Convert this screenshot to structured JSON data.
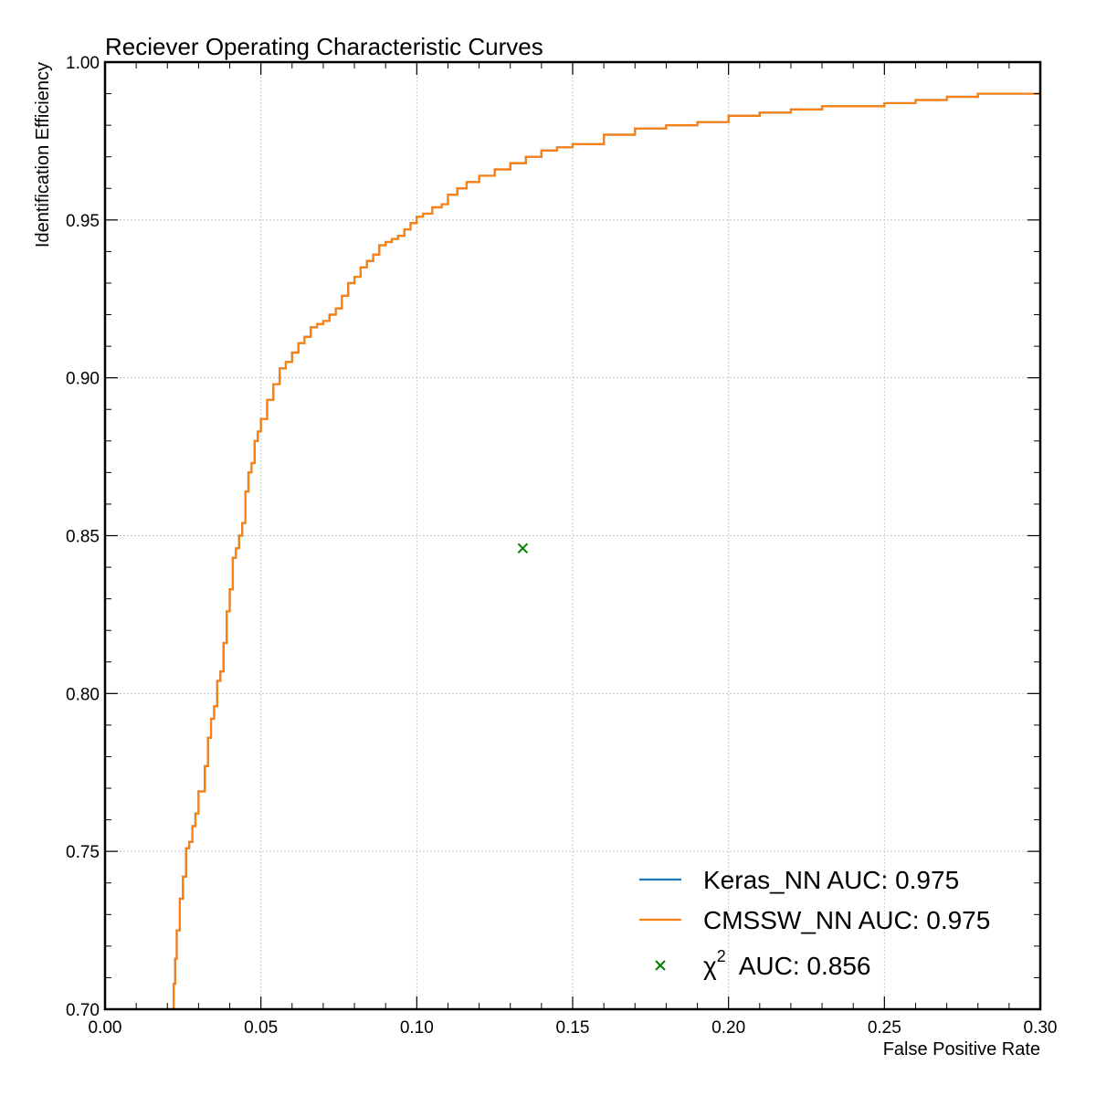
{
  "chart_data": {
    "type": "line",
    "title": "Reciever Operating Characteristic Curves",
    "xlabel": "False Positive Rate",
    "ylabel": "Identification Efficiency",
    "xlim": [
      0.0,
      0.3
    ],
    "ylim": [
      0.7,
      1.0
    ],
    "xticks": [
      "0.00",
      "0.05",
      "0.10",
      "0.15",
      "0.20",
      "0.25",
      "0.30"
    ],
    "yticks": [
      "0.70",
      "0.75",
      "0.80",
      "0.85",
      "0.90",
      "0.95",
      "1.00"
    ],
    "grid": true,
    "legend_position": "lower-right",
    "series": [
      {
        "name": "Keras_NN AUC: 0.975",
        "kind": "line",
        "color": "#1f77b4",
        "x": [
          0.0215,
          0.022,
          0.0225,
          0.023,
          0.024,
          0.025,
          0.026,
          0.027,
          0.028,
          0.029,
          0.03,
          0.031,
          0.032,
          0.033,
          0.034,
          0.035,
          0.036,
          0.037,
          0.038,
          0.039,
          0.04,
          0.041,
          0.042,
          0.043,
          0.044,
          0.045,
          0.046,
          0.047,
          0.048,
          0.049,
          0.05,
          0.052,
          0.054,
          0.056,
          0.058,
          0.06,
          0.062,
          0.064,
          0.066,
          0.068,
          0.07,
          0.072,
          0.074,
          0.076,
          0.078,
          0.08,
          0.082,
          0.084,
          0.086,
          0.088,
          0.09,
          0.092,
          0.094,
          0.096,
          0.098,
          0.1,
          0.102,
          0.105,
          0.108,
          0.11,
          0.113,
          0.116,
          0.12,
          0.125,
          0.13,
          0.135,
          0.14,
          0.145,
          0.15,
          0.16,
          0.17,
          0.18,
          0.19,
          0.2,
          0.21,
          0.22,
          0.23,
          0.24,
          0.25,
          0.26,
          0.27,
          0.28,
          0.29,
          0.3
        ],
        "y": [
          0.7,
          0.708,
          0.716,
          0.725,
          0.735,
          0.742,
          0.751,
          0.753,
          0.758,
          0.762,
          0.769,
          0.769,
          0.777,
          0.786,
          0.792,
          0.796,
          0.804,
          0.807,
          0.816,
          0.826,
          0.833,
          0.843,
          0.846,
          0.85,
          0.854,
          0.864,
          0.87,
          0.873,
          0.88,
          0.883,
          0.887,
          0.893,
          0.898,
          0.903,
          0.905,
          0.908,
          0.911,
          0.913,
          0.916,
          0.917,
          0.918,
          0.92,
          0.922,
          0.926,
          0.93,
          0.932,
          0.935,
          0.937,
          0.939,
          0.942,
          0.943,
          0.944,
          0.945,
          0.947,
          0.949,
          0.951,
          0.952,
          0.954,
          0.955,
          0.958,
          0.96,
          0.962,
          0.964,
          0.966,
          0.968,
          0.97,
          0.972,
          0.973,
          0.974,
          0.977,
          0.979,
          0.98,
          0.981,
          0.983,
          0.984,
          0.985,
          0.986,
          0.986,
          0.987,
          0.988,
          0.989,
          0.99,
          0.99,
          0.991
        ]
      },
      {
        "name": "CMSSW_NN AUC: 0.975",
        "kind": "line",
        "color": "#ff7f0e",
        "x": [
          0.0215,
          0.022,
          0.0225,
          0.023,
          0.024,
          0.025,
          0.026,
          0.027,
          0.028,
          0.029,
          0.03,
          0.031,
          0.032,
          0.033,
          0.034,
          0.035,
          0.036,
          0.037,
          0.038,
          0.039,
          0.04,
          0.041,
          0.042,
          0.043,
          0.044,
          0.045,
          0.046,
          0.047,
          0.048,
          0.049,
          0.05,
          0.052,
          0.054,
          0.056,
          0.058,
          0.06,
          0.062,
          0.064,
          0.066,
          0.068,
          0.07,
          0.072,
          0.074,
          0.076,
          0.078,
          0.08,
          0.082,
          0.084,
          0.086,
          0.088,
          0.09,
          0.092,
          0.094,
          0.096,
          0.098,
          0.1,
          0.102,
          0.105,
          0.108,
          0.11,
          0.113,
          0.116,
          0.12,
          0.125,
          0.13,
          0.135,
          0.14,
          0.145,
          0.15,
          0.16,
          0.17,
          0.18,
          0.19,
          0.2,
          0.21,
          0.22,
          0.23,
          0.24,
          0.25,
          0.26,
          0.27,
          0.28,
          0.29,
          0.3
        ],
        "y": [
          0.7,
          0.708,
          0.716,
          0.725,
          0.735,
          0.742,
          0.751,
          0.753,
          0.758,
          0.762,
          0.769,
          0.769,
          0.777,
          0.786,
          0.792,
          0.796,
          0.804,
          0.807,
          0.816,
          0.826,
          0.833,
          0.843,
          0.846,
          0.85,
          0.854,
          0.864,
          0.87,
          0.873,
          0.88,
          0.883,
          0.887,
          0.893,
          0.898,
          0.903,
          0.905,
          0.908,
          0.911,
          0.913,
          0.916,
          0.917,
          0.918,
          0.92,
          0.922,
          0.926,
          0.93,
          0.932,
          0.935,
          0.937,
          0.939,
          0.942,
          0.943,
          0.944,
          0.945,
          0.947,
          0.949,
          0.951,
          0.952,
          0.954,
          0.955,
          0.958,
          0.96,
          0.962,
          0.964,
          0.966,
          0.968,
          0.97,
          0.972,
          0.973,
          0.974,
          0.977,
          0.979,
          0.98,
          0.981,
          0.983,
          0.984,
          0.985,
          0.986,
          0.986,
          0.987,
          0.988,
          0.989,
          0.99,
          0.99,
          0.991
        ]
      },
      {
        "name": "χ² AUC: 0.856",
        "legend_symbol": "χ",
        "legend_superscript": "2",
        "legend_suffix": "AUC: 0.856",
        "kind": "scatter",
        "marker": "x",
        "color": "#008000",
        "x": [
          0.134
        ],
        "y": [
          0.846
        ]
      }
    ]
  }
}
